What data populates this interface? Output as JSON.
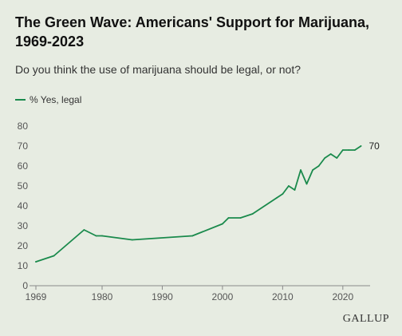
{
  "title": "The Green Wave: Americans' Support for Marijuana, 1969-2023",
  "subtitle": "Do you think the use of marijuana should be legal, or not?",
  "brand": "GALLUP",
  "colors": {
    "background": "#e7ece2",
    "line": "#1a8a4c",
    "axis": "#8a8a8a",
    "grid": "#d4d9cf"
  },
  "chart_data": {
    "type": "line",
    "title": "The Green Wave: Americans' Support for Marijuana, 1969-2023",
    "subtitle": "Do you think the use of marijuana should be legal, or not?",
    "xlabel": "",
    "ylabel": "",
    "xlim": [
      1969,
      2024
    ],
    "ylim": [
      0,
      80
    ],
    "x_ticks": [
      1969,
      1980,
      1990,
      2000,
      2010,
      2020
    ],
    "y_ticks": [
      0,
      10,
      20,
      30,
      40,
      50,
      60,
      70,
      80
    ],
    "grid": false,
    "legend": "top-left",
    "series": [
      {
        "name": "% Yes, legal",
        "end_label": "70",
        "x": [
          1969,
          1972,
          1977,
          1979,
          1980,
          1985,
          1995,
          2000,
          2001,
          2003,
          2005,
          2009,
          2010,
          2011,
          2012,
          2013,
          2014,
          2015,
          2016,
          2017,
          2018,
          2019,
          2020,
          2021,
          2022,
          2023
        ],
        "y": [
          12,
          15,
          28,
          25,
          25,
          23,
          25,
          31,
          34,
          34,
          36,
          44,
          46,
          50,
          48,
          58,
          51,
          58,
          60,
          64,
          66,
          64,
          68,
          68,
          68,
          70
        ]
      }
    ]
  }
}
